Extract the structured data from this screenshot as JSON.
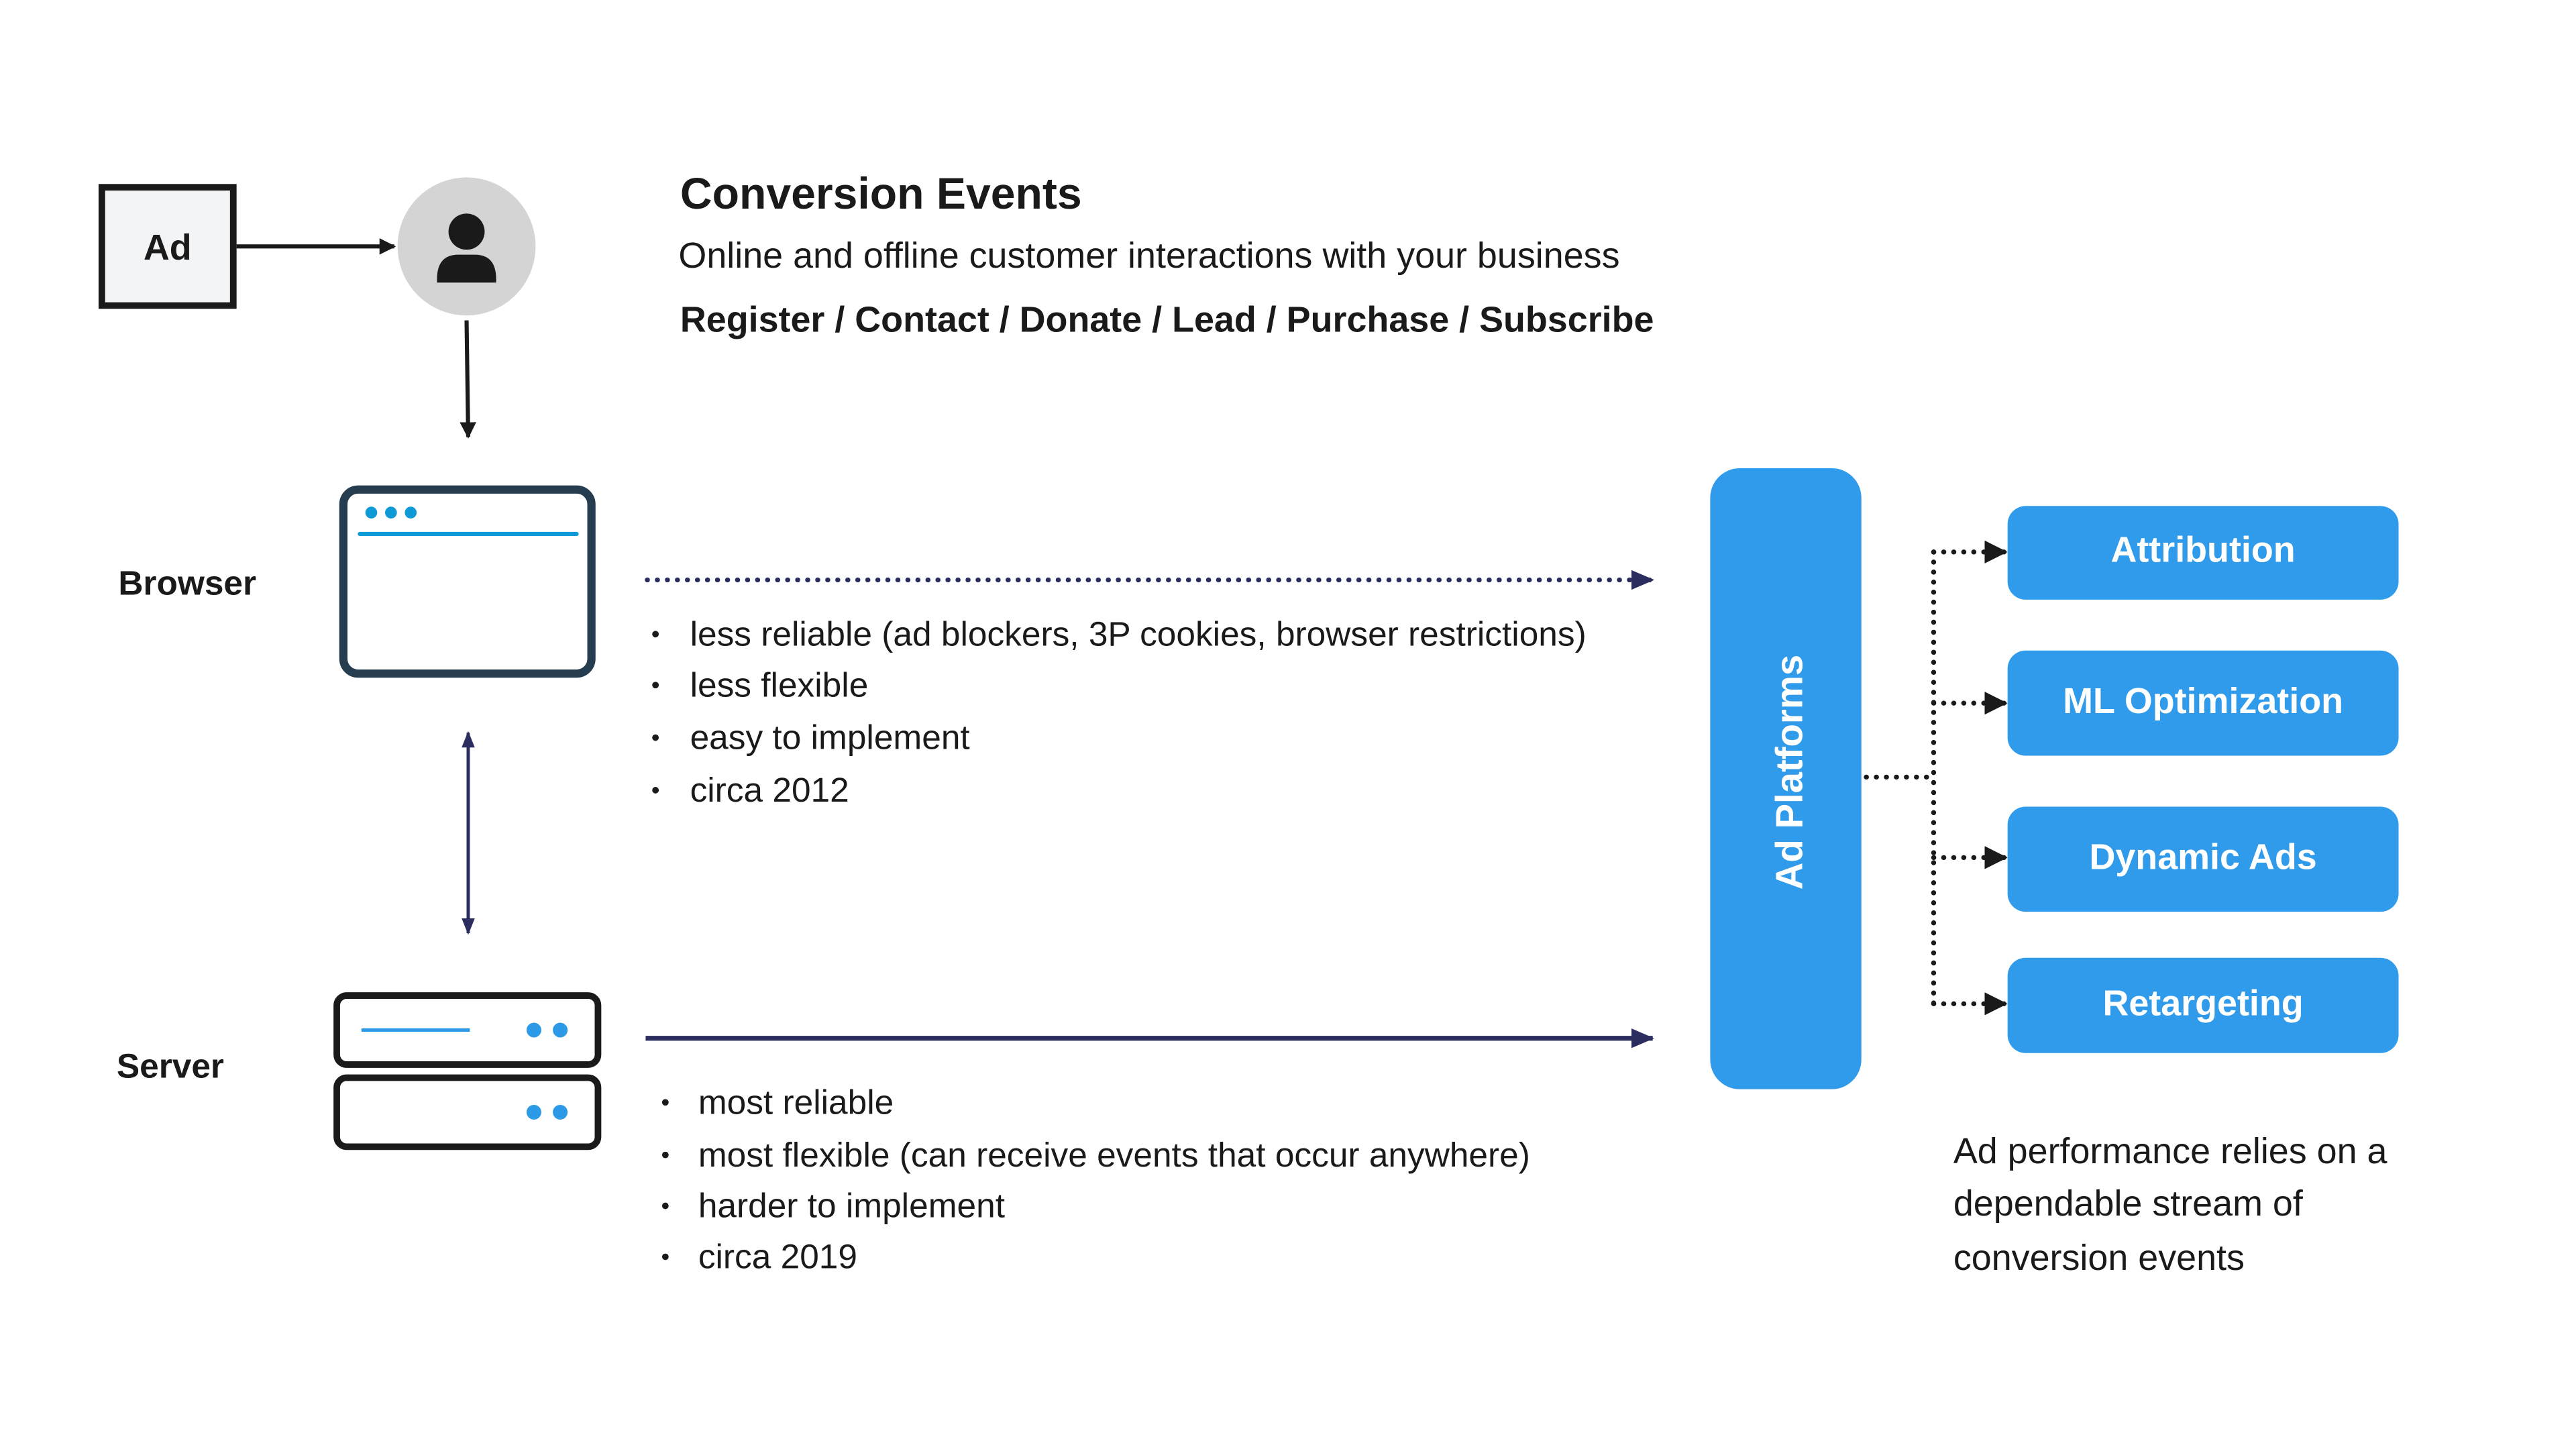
{
  "header": {
    "title": "Conversion Events",
    "subtitle": "Online and offline customer interactions with your business",
    "event_types": "Register / Contact / Donate / Lead / Purchase / Subscribe"
  },
  "ad_box": {
    "label": "Ad"
  },
  "browser": {
    "label": "Browser",
    "bullets": [
      "less reliable (ad blockers, 3P cookies, browser restrictions)",
      "less flexible",
      "easy to implement",
      "circa 2012"
    ]
  },
  "server": {
    "label": "Server",
    "bullets": [
      "most reliable",
      "most flexible (can receive events that occur anywhere)",
      "harder to implement",
      "circa 2019"
    ]
  },
  "ad_platforms": {
    "label": "Ad Platforms",
    "targets": [
      "Attribution",
      "ML Optimization",
      "Dynamic Ads",
      "Retargeting"
    ]
  },
  "caption": [
    "Ad performance relies on a",
    "dependable stream of",
    "conversion events"
  ],
  "colors": {
    "accent": "#2f9bea",
    "navy": "#2a2d5e",
    "dark": "#1a1a1a",
    "window_border": "#263d4f",
    "browser_blue": "#0e9ad6",
    "avatar_bg": "#d4d4d4"
  },
  "icons": {
    "user": "person-icon",
    "browser": "browser-window-icon",
    "server": "server-icon"
  }
}
